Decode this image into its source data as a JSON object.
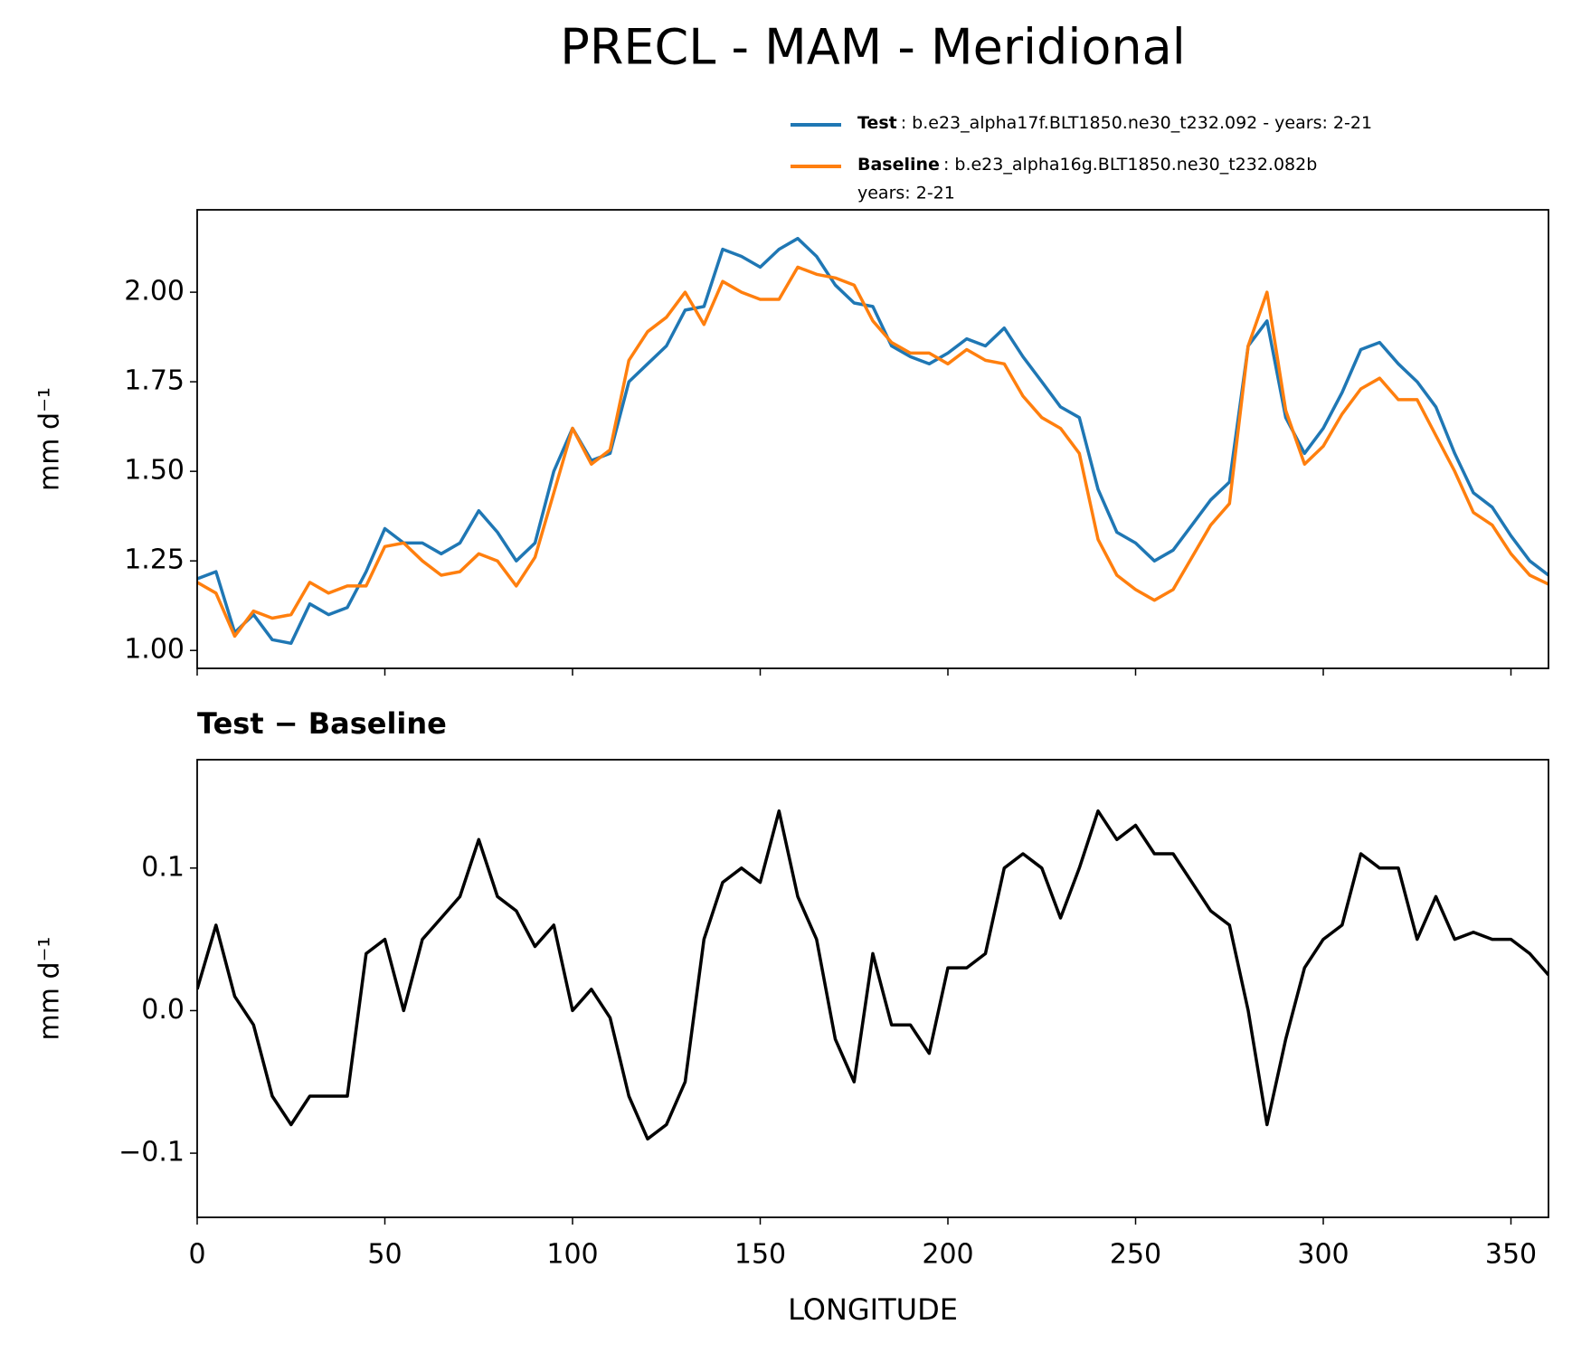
{
  "chart_data": [
    {
      "type": "line",
      "title": "PRECL - MAM - Meridional",
      "ylabel": "mm d⁻¹",
      "x": [
        0,
        5,
        10,
        15,
        20,
        25,
        30,
        35,
        40,
        45,
        50,
        55,
        60,
        65,
        70,
        75,
        80,
        85,
        90,
        95,
        100,
        105,
        110,
        115,
        120,
        125,
        130,
        135,
        140,
        145,
        150,
        155,
        160,
        165,
        170,
        175,
        180,
        185,
        190,
        195,
        200,
        205,
        210,
        215,
        220,
        225,
        230,
        235,
        240,
        245,
        250,
        255,
        260,
        265,
        270,
        275,
        280,
        285,
        290,
        295,
        300,
        305,
        310,
        315,
        320,
        325,
        330,
        335,
        340,
        345,
        350,
        355,
        360
      ],
      "xlim": [
        0,
        360
      ],
      "ylim": [
        0.95,
        2.23
      ],
      "yticks": [
        {
          "value": 1,
          "label": "1.00"
        },
        1.25,
        {
          "value": 1.5,
          "label": "1.50"
        },
        1.75,
        {
          "value": 2,
          "label": "2.00"
        }
      ],
      "legend": "upper right",
      "series": [
        {
          "name": "Test",
          "legend_text": [
            ": b.e23_alpha17f.BLT1850.ne30_t232.092 - years: 2-21"
          ],
          "color": "#1f77b4",
          "values": [
            1.2,
            1.22,
            1.05,
            1.1,
            1.03,
            1.02,
            1.13,
            1.1,
            1.12,
            1.22,
            1.34,
            1.3,
            1.3,
            1.27,
            1.3,
            1.39,
            1.33,
            1.25,
            1.3,
            1.5,
            1.62,
            1.53,
            1.55,
            1.75,
            1.8,
            1.85,
            1.95,
            1.96,
            2.12,
            2.1,
            2.07,
            2.12,
            2.15,
            2.1,
            2.02,
            1.97,
            1.96,
            1.85,
            1.82,
            1.8,
            1.83,
            1.87,
            1.85,
            1.9,
            1.82,
            1.75,
            1.68,
            1.65,
            1.45,
            1.33,
            1.3,
            1.25,
            1.28,
            1.35,
            1.42,
            1.47,
            1.85,
            1.92,
            1.65,
            1.55,
            1.62,
            1.72,
            1.84,
            1.86,
            1.8,
            1.75,
            1.68,
            1.55,
            1.44,
            1.4,
            1.32,
            1.25,
            1.21
          ]
        },
        {
          "name": "Baseline",
          "legend_text": [
            ": b.e23_alpha16g.BLT1850.ne30_t232.082b",
            "years: 2-21"
          ],
          "color": "#ff7f0e",
          "values": [
            1.19,
            1.16,
            1.04,
            1.11,
            1.09,
            1.1,
            1.19,
            1.16,
            1.18,
            1.18,
            1.29,
            1.3,
            1.25,
            1.21,
            1.22,
            1.27,
            1.25,
            1.18,
            1.26,
            1.44,
            1.62,
            1.52,
            1.56,
            1.81,
            1.89,
            1.93,
            2.0,
            1.91,
            2.03,
            2.0,
            1.98,
            1.98,
            2.07,
            2.05,
            2.04,
            2.02,
            1.92,
            1.86,
            1.83,
            1.83,
            1.8,
            1.84,
            1.81,
            1.8,
            1.71,
            1.65,
            1.62,
            1.55,
            1.31,
            1.21,
            1.17,
            1.14,
            1.17,
            1.26,
            1.35,
            1.41,
            1.85,
            2.0,
            1.67,
            1.52,
            1.57,
            1.66,
            1.73,
            1.76,
            1.7,
            1.7,
            1.6,
            1.5,
            1.385,
            1.35,
            1.27,
            1.21,
            1.185
          ]
        }
      ]
    },
    {
      "type": "line",
      "title": "Test − Baseline",
      "ylabel": "mm d⁻¹",
      "xlabel": "LONGITUDE",
      "x": [
        0,
        5,
        10,
        15,
        20,
        25,
        30,
        35,
        40,
        45,
        50,
        55,
        60,
        65,
        70,
        75,
        80,
        85,
        90,
        95,
        100,
        105,
        110,
        115,
        120,
        125,
        130,
        135,
        140,
        145,
        150,
        155,
        160,
        165,
        170,
        175,
        180,
        185,
        190,
        195,
        200,
        205,
        210,
        215,
        220,
        225,
        230,
        235,
        240,
        245,
        250,
        255,
        260,
        265,
        270,
        275,
        280,
        285,
        290,
        295,
        300,
        305,
        310,
        315,
        320,
        325,
        330,
        335,
        340,
        345,
        350,
        355,
        360
      ],
      "xlim": [
        0,
        360
      ],
      "xticks": [
        0,
        50,
        100,
        150,
        200,
        250,
        300,
        350
      ],
      "ylim": [
        -0.145,
        0.176
      ],
      "yticks": [
        {
          "value": -0.1,
          "label": "−0.1"
        },
        {
          "value": 0,
          "label": "0.0"
        },
        0.1
      ],
      "color": "#000000",
      "values": [
        0.015,
        0.06,
        0.01,
        -0.01,
        -0.06,
        -0.08,
        -0.06,
        -0.06,
        -0.06,
        0.04,
        0.05,
        0.0,
        0.05,
        0.065,
        0.08,
        0.12,
        0.08,
        0.07,
        0.045,
        0.06,
        0.0,
        0.015,
        -0.005,
        -0.06,
        -0.09,
        -0.08,
        -0.05,
        0.05,
        0.09,
        0.1,
        0.09,
        0.14,
        0.08,
        0.05,
        -0.02,
        -0.05,
        0.04,
        -0.01,
        -0.01,
        -0.03,
        0.03,
        0.03,
        0.04,
        0.1,
        0.11,
        0.1,
        0.065,
        0.1,
        0.14,
        0.12,
        0.13,
        0.11,
        0.11,
        0.09,
        0.07,
        0.06,
        0.0,
        -0.08,
        -0.02,
        0.03,
        0.05,
        0.06,
        0.11,
        0.1,
        0.1,
        0.05,
        0.08,
        0.05,
        0.055,
        0.05,
        0.05,
        0.04,
        0.025
      ]
    }
  ]
}
